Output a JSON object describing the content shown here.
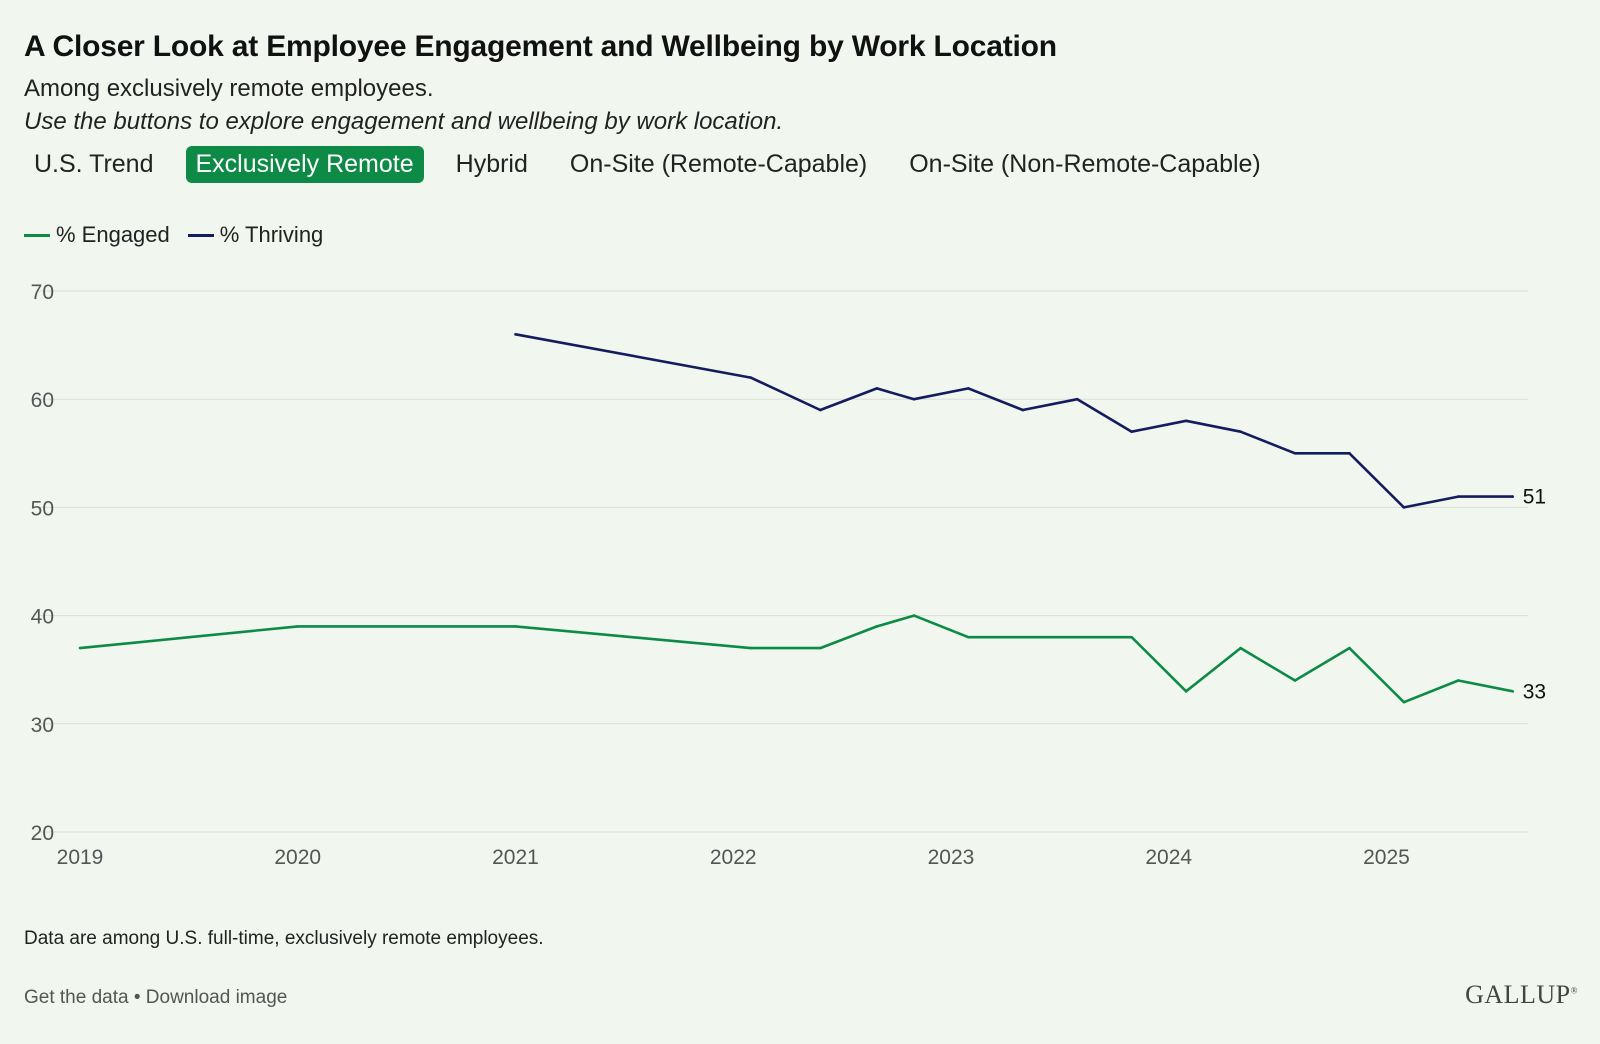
{
  "title": "A Closer Look at Employee Engagement and Wellbeing by Work Location",
  "subtitle": "Among exclusively remote employees.",
  "instructions": "Use the buttons to explore engagement and wellbeing by work location.",
  "tabs": [
    {
      "label": "U.S. Trend",
      "active": false
    },
    {
      "label": "Exclusively Remote",
      "active": true
    },
    {
      "label": "Hybrid",
      "active": false
    },
    {
      "label": "On-Site (Remote-Capable)",
      "active": false
    },
    {
      "label": "On-Site (Non-Remote-Capable)",
      "active": false
    }
  ],
  "colors": {
    "engaged": "#0d8b46",
    "thriving": "#141c5e",
    "grid": "#d9ded7",
    "axis_text": "#555555",
    "active_tab": "#0d8b46"
  },
  "legend": {
    "engaged_label": "% Engaged",
    "thriving_label": "% Thriving"
  },
  "chart_data": {
    "type": "line",
    "title": "A Closer Look at Employee Engagement and Wellbeing by Work Location",
    "xlabel": "",
    "ylabel": "",
    "xlim": [
      2019,
      2025.65
    ],
    "ylim": [
      20,
      70
    ],
    "yticks": [
      20,
      30,
      40,
      50,
      60,
      70
    ],
    "xticks": [
      2019,
      2020,
      2021,
      2022,
      2023,
      2024,
      2025
    ],
    "grid": true,
    "legend_position": "top-left",
    "series": [
      {
        "name": "% Engaged",
        "color_key": "engaged",
        "end_label": "33",
        "points": [
          [
            2019.0,
            37
          ],
          [
            2020.0,
            39
          ],
          [
            2021.0,
            39
          ],
          [
            2022.08,
            37
          ],
          [
            2022.4,
            37
          ],
          [
            2022.66,
            39
          ],
          [
            2022.83,
            40
          ],
          [
            2023.08,
            38
          ],
          [
            2023.83,
            38
          ],
          [
            2024.08,
            33
          ],
          [
            2024.33,
            37
          ],
          [
            2024.58,
            34
          ],
          [
            2024.83,
            37
          ],
          [
            2025.08,
            32
          ],
          [
            2025.33,
            34
          ],
          [
            2025.58,
            33
          ]
        ]
      },
      {
        "name": "% Thriving",
        "color_key": "thriving",
        "end_label": "51",
        "points": [
          [
            2021.0,
            66
          ],
          [
            2022.08,
            62
          ],
          [
            2022.4,
            59
          ],
          [
            2022.66,
            61
          ],
          [
            2022.83,
            60
          ],
          [
            2023.08,
            61
          ],
          [
            2023.33,
            59
          ],
          [
            2023.58,
            60
          ],
          [
            2023.83,
            57
          ],
          [
            2024.08,
            58
          ],
          [
            2024.33,
            57
          ],
          [
            2024.58,
            55
          ],
          [
            2024.83,
            55
          ],
          [
            2025.08,
            50
          ],
          [
            2025.33,
            51
          ],
          [
            2025.58,
            51
          ]
        ]
      }
    ]
  },
  "footer": {
    "note": "Data are among U.S. full-time, exclusively remote employees.",
    "get_data": "Get the data",
    "separator": " • ",
    "download": "Download image",
    "logo": "GALLUP",
    "logo_mark": "®"
  }
}
